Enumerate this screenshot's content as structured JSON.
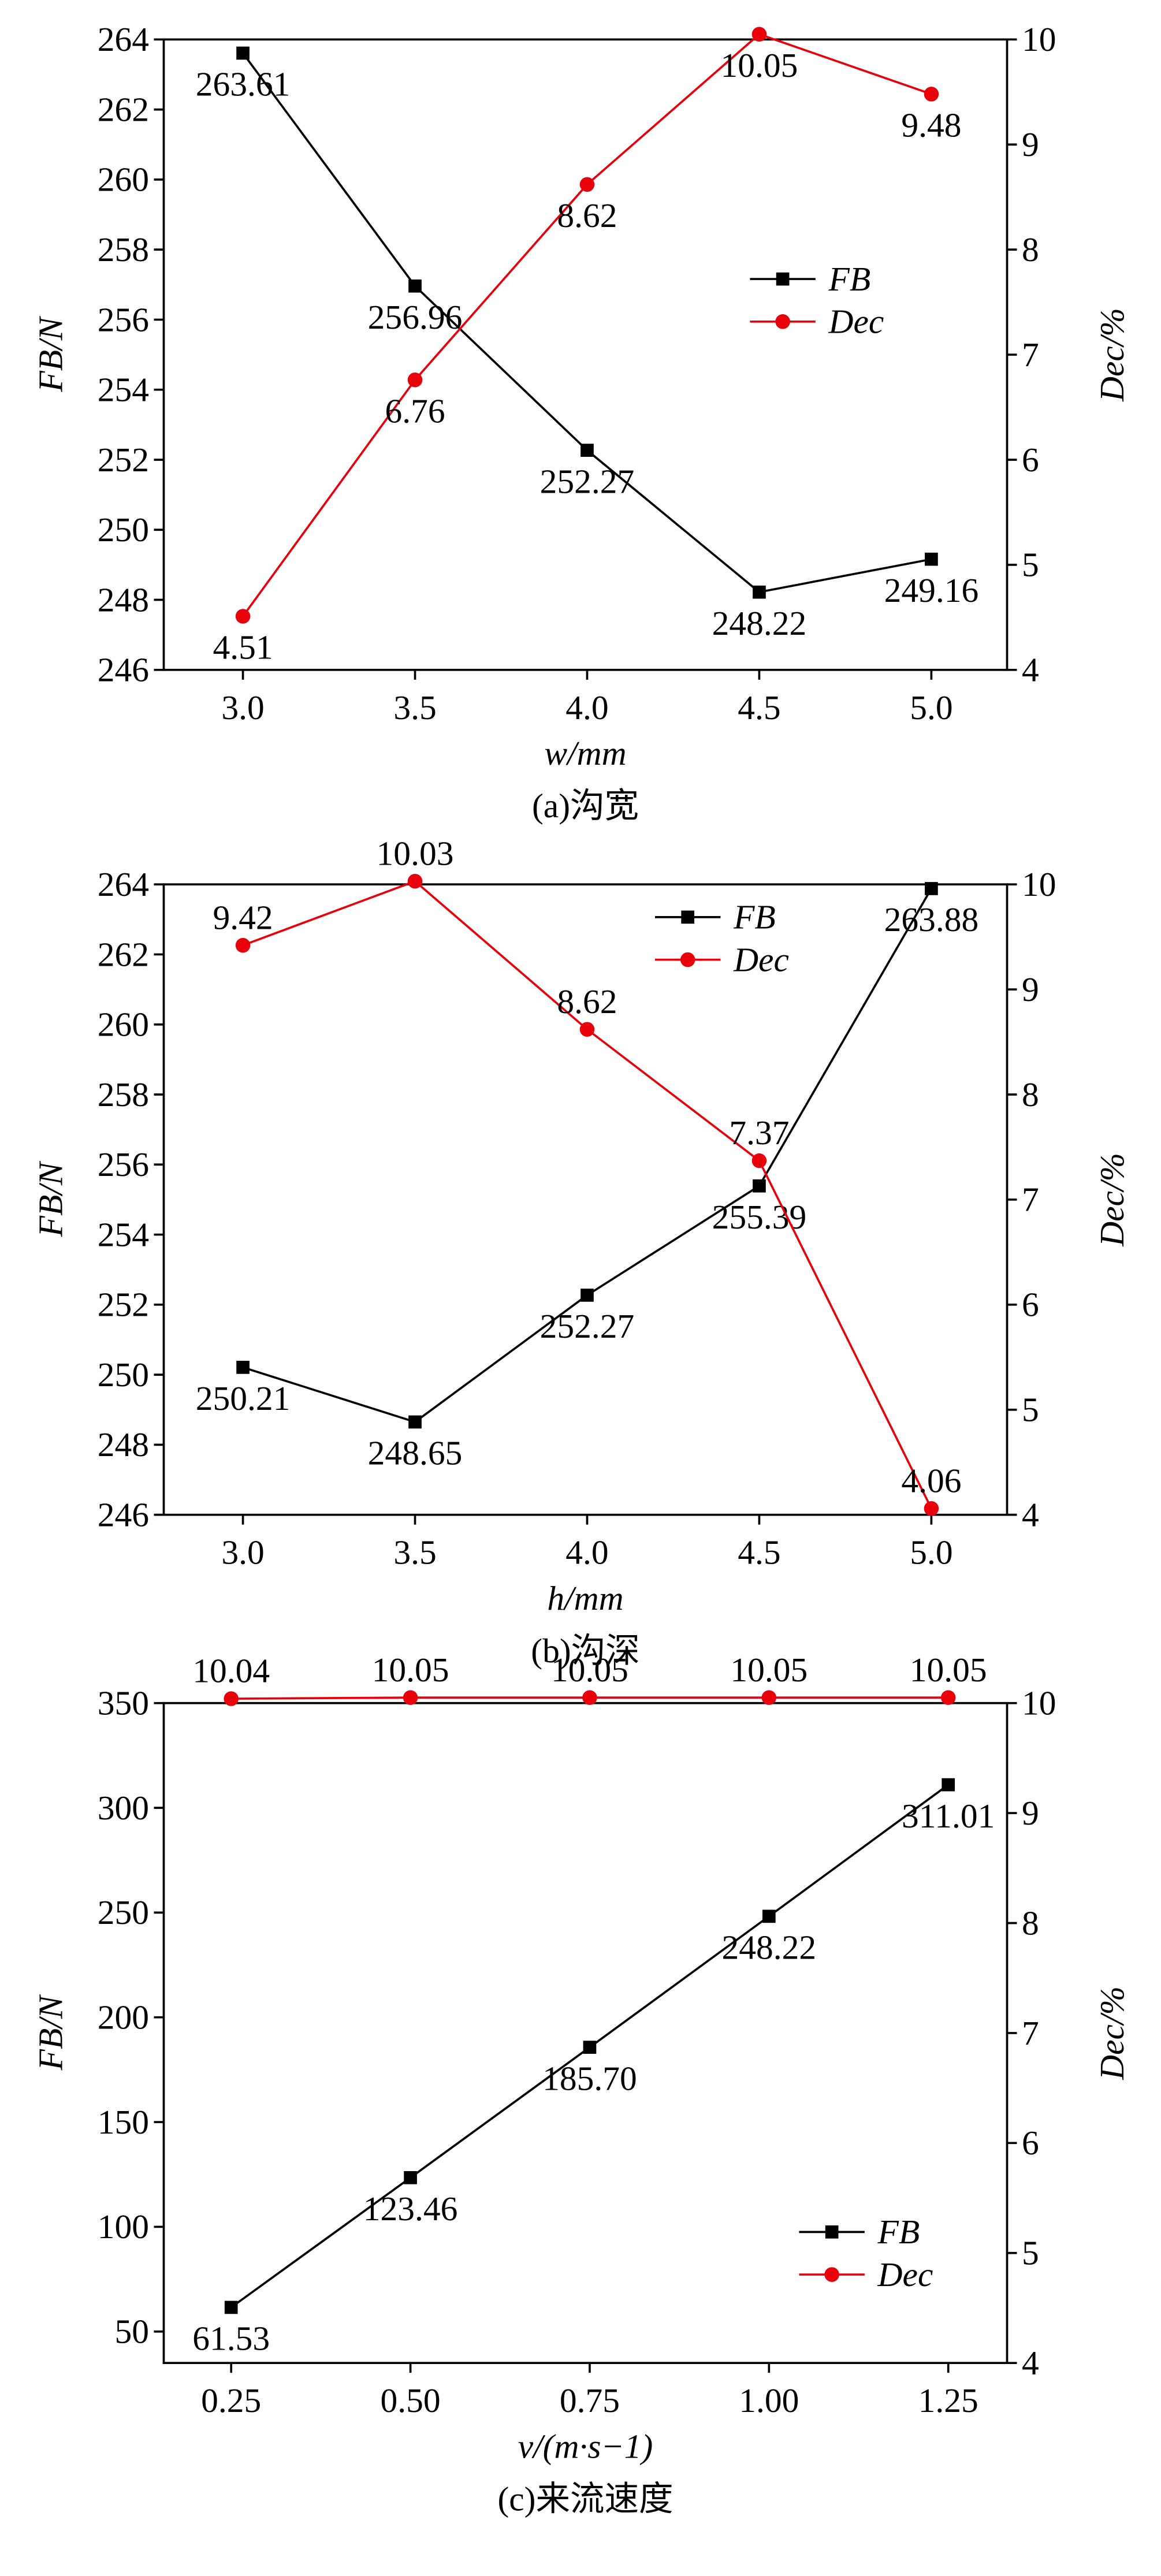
{
  "chart_data": [
    {
      "type": "line",
      "caption": "(a)沟宽",
      "x_label": "w/mm",
      "y_label": "FB/N",
      "y2_label": "Dec/%",
      "x": [
        3.0,
        3.5,
        4.0,
        4.5,
        5.0
      ],
      "xlim": [
        2.77,
        5.22
      ],
      "xticks": [
        {
          "value": 3,
          "label": "3.0"
        },
        {
          "value": 3.5,
          "label": "3.5"
        },
        {
          "value": 4,
          "label": "4.0"
        },
        {
          "value": 4.5,
          "label": "4.5"
        },
        {
          "value": 5,
          "label": "5.0"
        }
      ],
      "ylim": [
        246,
        264
      ],
      "yticks": [
        246,
        248,
        250,
        252,
        254,
        256,
        258,
        260,
        262,
        264
      ],
      "y2lim": [
        4,
        10
      ],
      "y2ticks": [
        4,
        5,
        6,
        7,
        8,
        9,
        10
      ],
      "legend": "right",
      "series": [
        {
          "name": "FB",
          "color": "#000000",
          "marker": "square",
          "values": [
            263.61,
            256.96,
            252.27,
            248.22,
            249.16
          ]
        },
        {
          "name": "Dec",
          "color": "#e8000b",
          "marker": "circle",
          "axis": "y2",
          "values": [
            4.51,
            6.76,
            8.62,
            10.05,
            9.48
          ]
        }
      ]
    },
    {
      "type": "line",
      "caption": "(b)沟深",
      "x_label": "h/mm",
      "y_label": "FB/N",
      "y2_label": "Dec/%",
      "x": [
        3.0,
        3.5,
        4.0,
        4.5,
        5.0
      ],
      "xlim": [
        2.77,
        5.22
      ],
      "xticks": [
        {
          "value": 3,
          "label": "3.0"
        },
        {
          "value": 3.5,
          "label": "3.5"
        },
        {
          "value": 4,
          "label": "4.0"
        },
        {
          "value": 4.5,
          "label": "4.5"
        },
        {
          "value": 5,
          "label": "5.0"
        }
      ],
      "ylim": [
        246,
        264
      ],
      "yticks": [
        246,
        248,
        250,
        252,
        254,
        256,
        258,
        260,
        262,
        264
      ],
      "y2lim": [
        4,
        10
      ],
      "y2ticks": [
        4,
        5,
        6,
        7,
        8,
        9,
        10
      ],
      "legend": "upper right",
      "series": [
        {
          "name": "FB",
          "color": "#000000",
          "marker": "square",
          "values": [
            250.21,
            248.65,
            252.27,
            255.39,
            263.88
          ]
        },
        {
          "name": "Dec",
          "color": "#e8000b",
          "marker": "circle",
          "axis": "y2",
          "values": [
            9.42,
            10.03,
            8.62,
            7.37,
            4.06
          ]
        }
      ]
    },
    {
      "type": "line",
      "caption": "(c)来流速度",
      "x_label": "v/(m·s−1)",
      "y_label": "FB/N",
      "y2_label": "Dec/%",
      "x": [
        0.25,
        0.5,
        0.75,
        1.0,
        1.25
      ],
      "xlim": [
        0.156,
        1.332
      ],
      "xticks": [
        {
          "value": 0.25,
          "label": "0.25"
        },
        {
          "value": 0.5,
          "label": "0.50"
        },
        {
          "value": 0.75,
          "label": "0.75"
        },
        {
          "value": 1,
          "label": "1.00"
        },
        {
          "value": 1.25,
          "label": "1.25"
        }
      ],
      "ylim": [
        35,
        350
      ],
      "yticks": [
        50,
        100,
        150,
        200,
        250,
        300,
        350
      ],
      "y2lim": [
        4,
        10
      ],
      "y2ticks": [
        4,
        5,
        6,
        7,
        8,
        9,
        10
      ],
      "legend": "lower right",
      "series": [
        {
          "name": "FB",
          "color": "#000000",
          "marker": "square",
          "values": [
            61.53,
            123.46,
            185.7,
            248.22,
            311.01
          ],
          "value_labels": [
            "61.53",
            "123.46",
            "185.70",
            "248.22",
            "311.01"
          ]
        },
        {
          "name": "Dec",
          "color": "#e8000b",
          "marker": "circle",
          "axis": "y2",
          "values": [
            10.04,
            10.05,
            10.05,
            10.05,
            10.05
          ]
        }
      ]
    }
  ]
}
